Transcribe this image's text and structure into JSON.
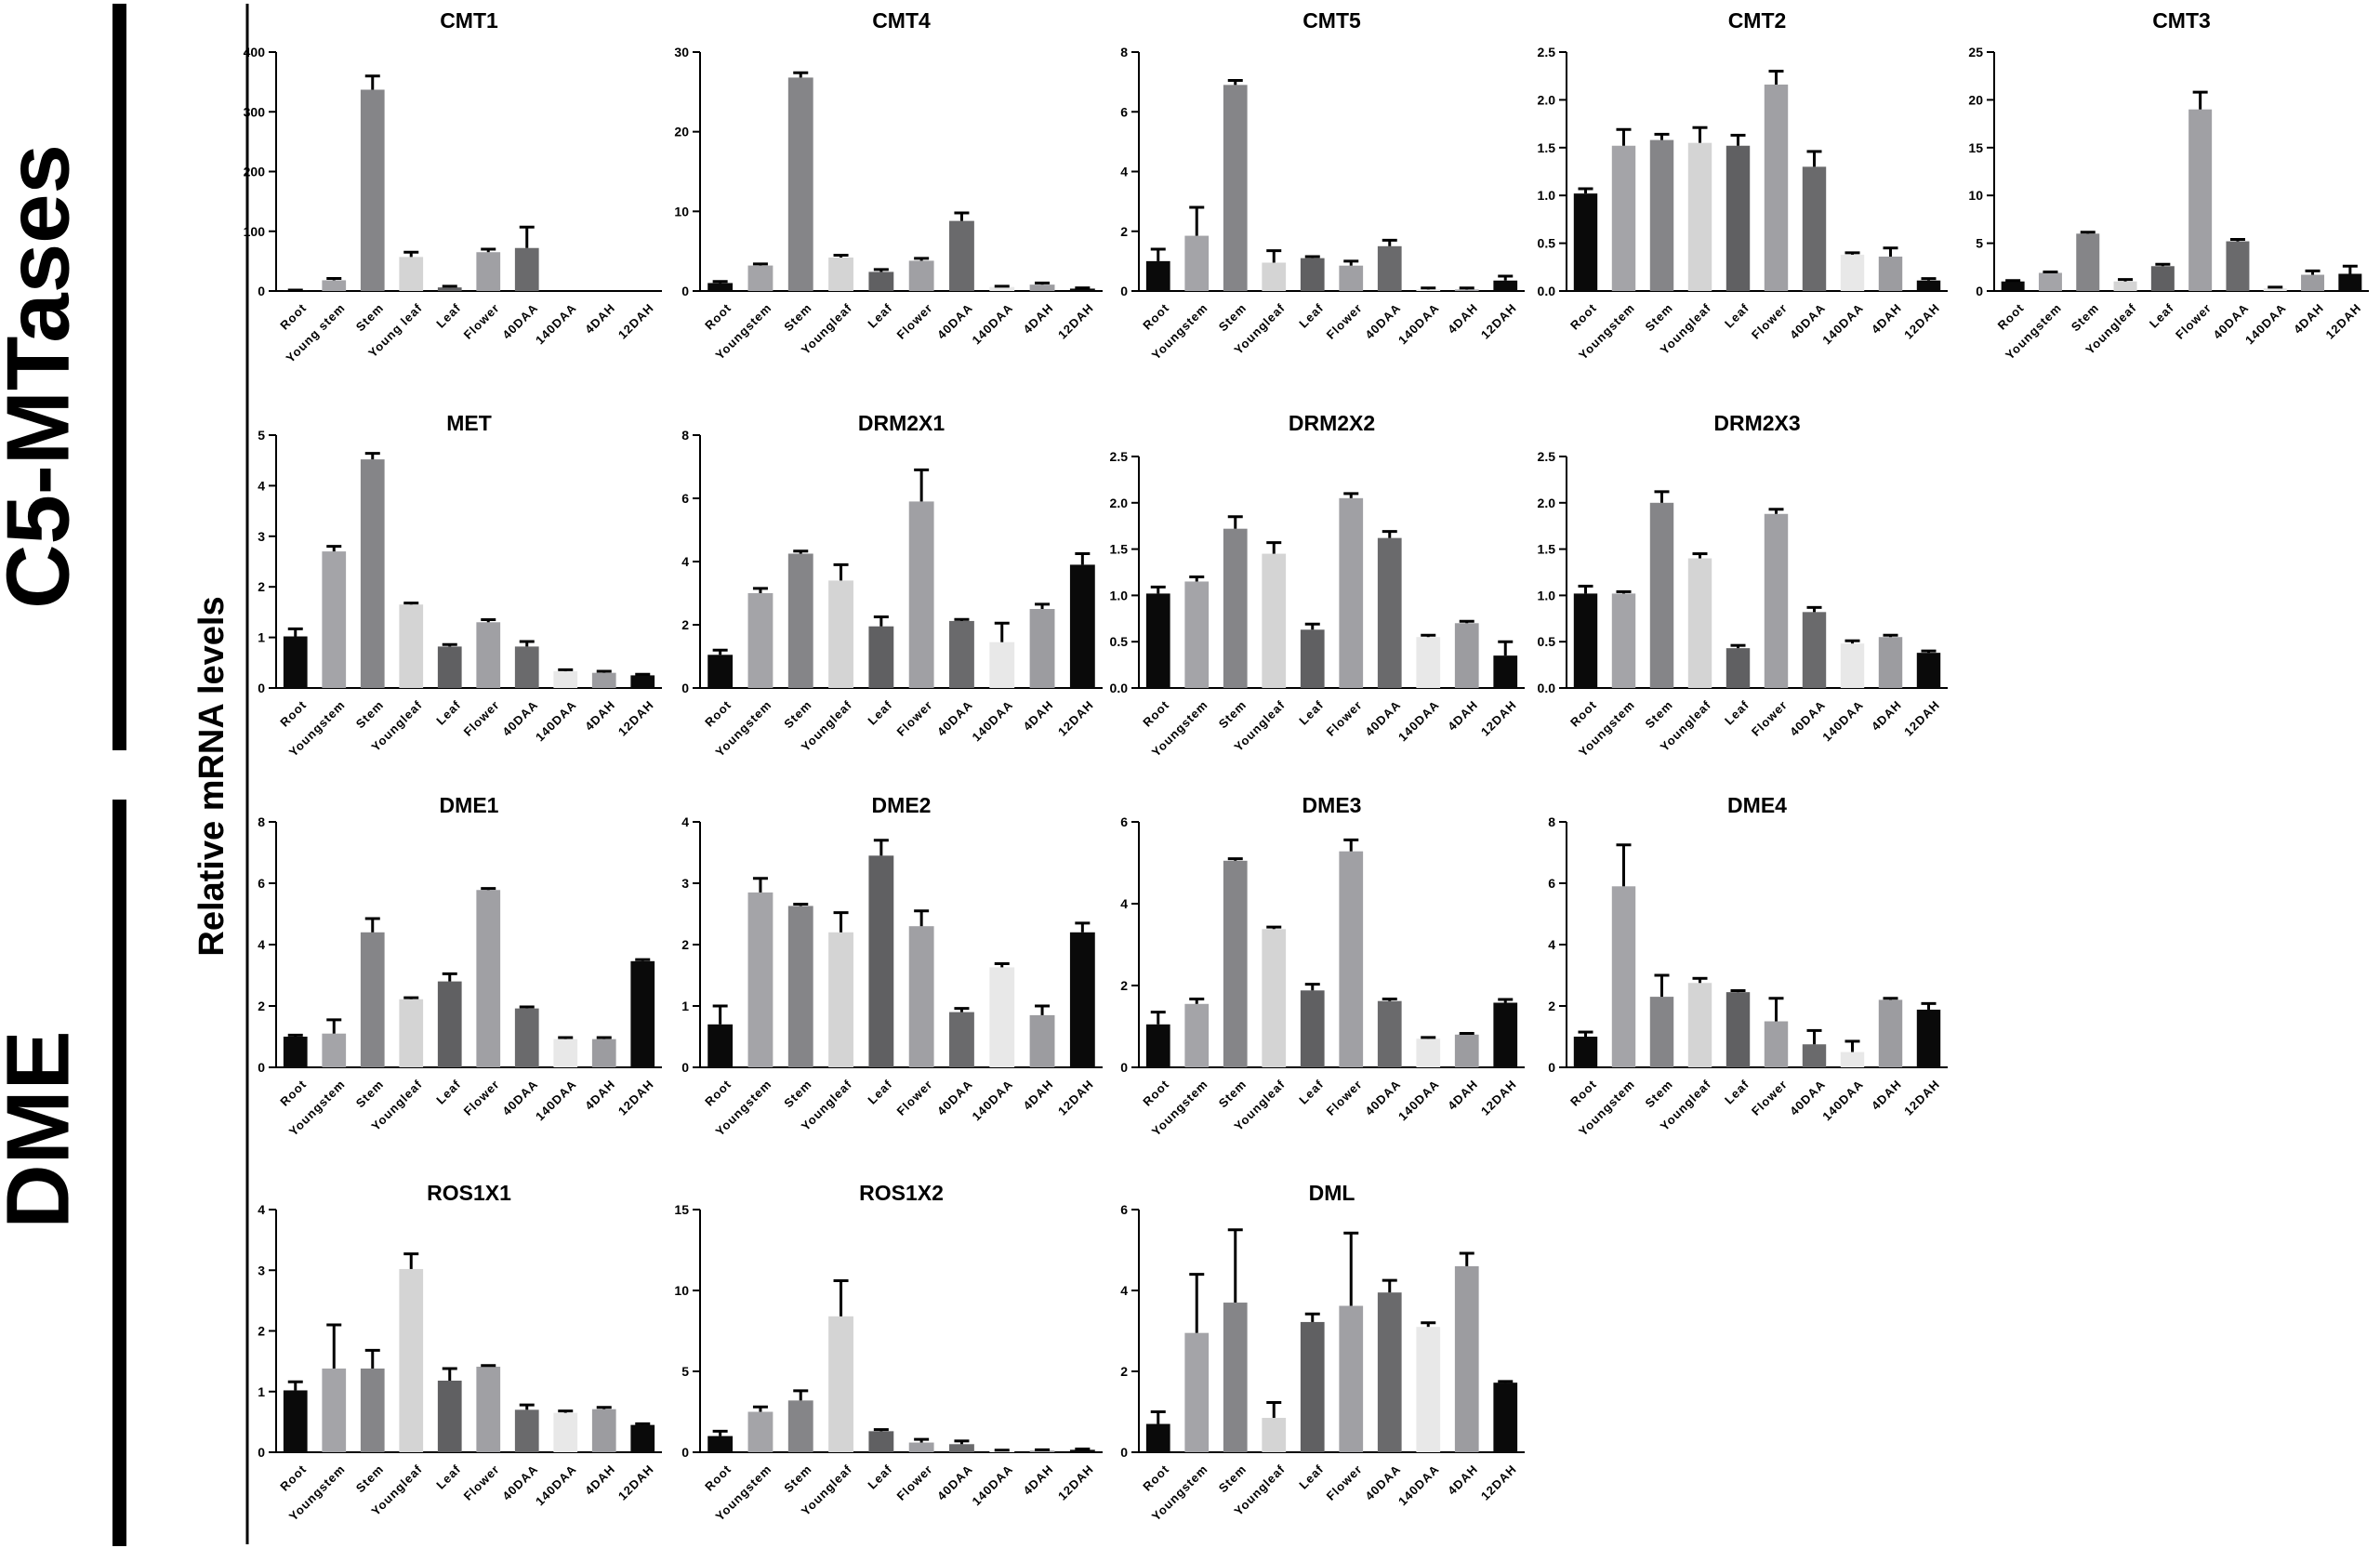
{
  "group_labels": {
    "c5_mtases": "C5-MTases",
    "dme": "DME",
    "y_axis": "Relative mRNA levels"
  },
  "colors": {
    "axis": "#000000",
    "bar_palette": [
      "#0a0a0a",
      "#a4a4a8",
      "#858588",
      "#d4d4d4",
      "#606062",
      "#a0a0a4",
      "#6a6a6c",
      "#e8e8e8",
      "#9c9ca0",
      "#0a0a0a"
    ]
  },
  "chart_data": [
    {
      "type": "bar",
      "title": "CMT1",
      "ylim": [
        0,
        400
      ],
      "yticks": [
        "0",
        "100",
        "200",
        "300",
        "400"
      ],
      "categories": [
        "Root",
        "Young stem",
        "Stem",
        "Young leaf",
        "Leaf",
        "Flower",
        "40DAA",
        "140DAA",
        "4DAH",
        "12DAH"
      ],
      "values": [
        1,
        18,
        337,
        57,
        6,
        65,
        72,
        null,
        null,
        null
      ],
      "errors": [
        0.5,
        3,
        23,
        8,
        2,
        5,
        35,
        null,
        null,
        null
      ]
    },
    {
      "type": "bar",
      "title": "CMT4",
      "ylim": [
        0,
        30
      ],
      "yticks": [
        "0",
        "10",
        "20",
        "30"
      ],
      "categories": [
        "Root",
        "Youngstem",
        "Stem",
        "Youngleaf",
        "Leaf",
        "Flower",
        "40DAA",
        "140DAA",
        "4DAH",
        "12DAH"
      ],
      "values": [
        1,
        3.2,
        26.8,
        4.2,
        2.4,
        3.8,
        8.8,
        0.5,
        0.8,
        0.3
      ],
      "errors": [
        0.2,
        0.2,
        0.6,
        0.3,
        0.3,
        0.3,
        1.0,
        0.1,
        0.2,
        0.1
      ]
    },
    {
      "type": "bar",
      "title": "CMT5",
      "ylim": [
        0,
        8
      ],
      "yticks": [
        "0",
        "2",
        "4",
        "6",
        "8"
      ],
      "categories": [
        "Root",
        "Youngstem",
        "Stem",
        "Youngleaf",
        "Leaf",
        "Flower",
        "40DAA",
        "140DAA",
        "4DAH",
        "12DAH"
      ],
      "values": [
        1.0,
        1.85,
        6.9,
        0.95,
        1.1,
        0.85,
        1.5,
        0.05,
        0.05,
        0.35
      ],
      "errors": [
        0.4,
        0.95,
        0.15,
        0.4,
        0.05,
        0.15,
        0.2,
        0.05,
        0.05,
        0.15
      ]
    },
    {
      "type": "bar",
      "title": "CMT2",
      "ylim": [
        0,
        2.5
      ],
      "yticks": [
        "0.0",
        "0.5",
        "1.0",
        "1.5",
        "2.0",
        "2.5"
      ],
      "categories": [
        "Root",
        "Youngstem",
        "Stem",
        "Youngleaf",
        "Leaf",
        "Flower",
        "40DAA",
        "140DAA",
        "4DAH",
        "12DAH"
      ],
      "values": [
        1.02,
        1.52,
        1.58,
        1.55,
        1.52,
        2.16,
        1.3,
        0.38,
        0.36,
        0.11
      ],
      "errors": [
        0.05,
        0.17,
        0.06,
        0.16,
        0.11,
        0.14,
        0.16,
        0.02,
        0.09,
        0.02
      ]
    },
    {
      "type": "bar",
      "title": "CMT3",
      "ylim": [
        0,
        25
      ],
      "yticks": [
        "0",
        "5",
        "10",
        "15",
        "20",
        "25"
      ],
      "categories": [
        "Root",
        "Youngstem",
        "Stem",
        "Youngleaf",
        "Leaf",
        "Flower",
        "40DAA",
        "140DAA",
        "4DAH",
        "12DAH"
      ],
      "values": [
        1.0,
        1.9,
        6.0,
        1.0,
        2.6,
        19.0,
        5.2,
        0.3,
        1.7,
        1.8
      ],
      "errors": [
        0.1,
        0.1,
        0.15,
        0.2,
        0.2,
        1.8,
        0.2,
        0.1,
        0.4,
        0.8
      ]
    },
    {
      "type": "bar",
      "title": "MET",
      "ylim": [
        0,
        5
      ],
      "yticks": [
        "0",
        "1",
        "2",
        "3",
        "4",
        "5"
      ],
      "categories": [
        "Root",
        "Youngstem",
        "Stem",
        "Youngleaf",
        "Leaf",
        "Flower",
        "40DAA",
        "140DAA",
        "4DAH",
        "12DAH"
      ],
      "values": [
        1.02,
        2.7,
        4.52,
        1.65,
        0.82,
        1.3,
        0.82,
        0.33,
        0.3,
        0.25
      ],
      "errors": [
        0.15,
        0.1,
        0.12,
        0.03,
        0.04,
        0.05,
        0.1,
        0.03,
        0.03,
        0.02
      ]
    },
    {
      "type": "bar",
      "title": "DRM2X1",
      "ylim": [
        0,
        8
      ],
      "yticks": [
        "0",
        "2",
        "4",
        "6",
        "8"
      ],
      "categories": [
        "Root",
        "Youngstem",
        "Stem",
        "Youngleaf",
        "Leaf",
        "Flower",
        "40DAA",
        "140DAA",
        "4DAH",
        "12DAH"
      ],
      "values": [
        1.05,
        3.0,
        4.25,
        3.4,
        1.95,
        5.9,
        2.12,
        1.45,
        2.5,
        3.9
      ],
      "errors": [
        0.15,
        0.15,
        0.08,
        0.5,
        0.3,
        1.0,
        0.05,
        0.6,
        0.15,
        0.35
      ]
    },
    {
      "type": "bar",
      "title": "DRM2X2",
      "ylim": [
        0,
        2.5
      ],
      "yticks": [
        "0.0",
        "0.5",
        "1.0",
        "1.5",
        "2.0",
        "2.5"
      ],
      "categories": [
        "Root",
        "Youngstem",
        "Stem",
        "Youngleaf",
        "Leaf",
        "Flower",
        "40DAA",
        "140DAA",
        "4DAH",
        "12DAH"
      ],
      "values": [
        1.02,
        1.15,
        1.72,
        1.45,
        0.63,
        2.05,
        1.62,
        0.55,
        0.7,
        0.35
      ],
      "errors": [
        0.07,
        0.05,
        0.13,
        0.12,
        0.06,
        0.05,
        0.07,
        0.02,
        0.02,
        0.15
      ]
    },
    {
      "type": "bar",
      "title": "DRM2X3",
      "ylim": [
        0,
        2.5
      ],
      "yticks": [
        "0.0",
        "0.5",
        "1.0",
        "1.5",
        "2.0",
        "2.5"
      ],
      "categories": [
        "Root",
        "Youngstem",
        "Stem",
        "Youngleaf",
        "Leaf",
        "Flower",
        "40DAA",
        "140DAA",
        "4DAH",
        "12DAH"
      ],
      "values": [
        1.02,
        1.02,
        2.0,
        1.4,
        0.43,
        1.88,
        0.82,
        0.48,
        0.55,
        0.38
      ],
      "errors": [
        0.08,
        0.02,
        0.12,
        0.05,
        0.03,
        0.05,
        0.05,
        0.03,
        0.02,
        0.02
      ]
    },
    {
      "type": "bar",
      "title": "DME1",
      "ylim": [
        0,
        8
      ],
      "yticks": [
        "0",
        "2",
        "4",
        "6",
        "8"
      ],
      "categories": [
        "Root",
        "Youngstem",
        "Stem",
        "Youngleaf",
        "Leaf",
        "Flower",
        "40DAA",
        "140DAA",
        "4DAH",
        "12DAH"
      ],
      "values": [
        1.0,
        1.1,
        4.4,
        2.22,
        2.8,
        5.78,
        1.92,
        0.92,
        0.92,
        3.46
      ],
      "errors": [
        0.05,
        0.45,
        0.45,
        0.05,
        0.25,
        0.05,
        0.05,
        0.05,
        0.05,
        0.05
      ]
    },
    {
      "type": "bar",
      "title": "DME2",
      "ylim": [
        0,
        4
      ],
      "yticks": [
        "0",
        "1",
        "2",
        "3",
        "4"
      ],
      "categories": [
        "Root",
        "Youngstem",
        "Stem",
        "Youngleaf",
        "Leaf",
        "Flower",
        "40DAA",
        "140DAA",
        "4DAH",
        "12DAH"
      ],
      "values": [
        0.7,
        2.85,
        2.63,
        2.2,
        3.45,
        2.3,
        0.9,
        1.63,
        0.85,
        2.2
      ],
      "errors": [
        0.3,
        0.23,
        0.03,
        0.32,
        0.25,
        0.25,
        0.06,
        0.06,
        0.15,
        0.15
      ]
    },
    {
      "type": "bar",
      "title": "DME3",
      "ylim": [
        0,
        6
      ],
      "yticks": [
        "0",
        "2",
        "4",
        "6"
      ],
      "categories": [
        "Root",
        "Youngstem",
        "Stem",
        "Youngleaf",
        "Leaf",
        "Flower",
        "40DAA",
        "140DAA",
        "4DAH",
        "12DAH"
      ],
      "values": [
        1.05,
        1.55,
        5.05,
        3.38,
        1.88,
        5.28,
        1.62,
        0.7,
        0.8,
        1.58
      ],
      "errors": [
        0.3,
        0.12,
        0.05,
        0.05,
        0.15,
        0.28,
        0.05,
        0.03,
        0.03,
        0.08
      ]
    },
    {
      "type": "bar",
      "title": "DME4",
      "ylim": [
        0,
        8
      ],
      "yticks": [
        "0",
        "2",
        "4",
        "6",
        "8"
      ],
      "categories": [
        "Root",
        "Youngstem",
        "Stem",
        "Youngleaf",
        "Leaf",
        "Flower",
        "40DAA",
        "140DAA",
        "4DAH",
        "12DAH"
      ],
      "values": [
        1.0,
        5.9,
        2.3,
        2.75,
        2.45,
        1.5,
        0.75,
        0.5,
        2.2,
        1.88
      ],
      "errors": [
        0.15,
        1.35,
        0.7,
        0.15,
        0.05,
        0.75,
        0.45,
        0.35,
        0.05,
        0.2
      ]
    },
    {
      "type": "bar",
      "title": "ROS1X1",
      "ylim": [
        0,
        4
      ],
      "yticks": [
        "0",
        "1",
        "2",
        "3",
        "4"
      ],
      "categories": [
        "Root",
        "Youngstem",
        "Stem",
        "Youngleaf",
        "Leaf",
        "Flower",
        "40DAA",
        "140DAA",
        "4DAH",
        "12DAH"
      ],
      "values": [
        1.02,
        1.38,
        1.38,
        3.02,
        1.18,
        1.41,
        0.7,
        0.65,
        0.71,
        0.45
      ],
      "errors": [
        0.14,
        0.72,
        0.3,
        0.25,
        0.2,
        0.02,
        0.08,
        0.03,
        0.03,
        0.02
      ]
    },
    {
      "type": "bar",
      "title": "ROS1X2",
      "ylim": [
        0,
        15
      ],
      "yticks": [
        "0",
        "5",
        "10",
        "15"
      ],
      "categories": [
        "Root",
        "Youngstem",
        "Stem",
        "Youngleaf",
        "Leaf",
        "Flower",
        "40DAA",
        "140DAA",
        "4DAH",
        "12DAH"
      ],
      "values": [
        1.0,
        2.5,
        3.2,
        8.4,
        1.3,
        0.6,
        0.5,
        0.08,
        0.1,
        0.15
      ],
      "errors": [
        0.3,
        0.3,
        0.6,
        2.2,
        0.1,
        0.2,
        0.2,
        0.05,
        0.05,
        0.05
      ]
    },
    {
      "type": "bar",
      "title": "DML",
      "ylim": [
        0,
        6
      ],
      "yticks": [
        "0",
        "2",
        "4",
        "6"
      ],
      "categories": [
        "Root",
        "Youngstem",
        "Stem",
        "Youngleaf",
        "Leaf",
        "Flower",
        "40DAA",
        "140DAA",
        "4DAH",
        "12DAH"
      ],
      "values": [
        0.7,
        2.95,
        3.7,
        0.85,
        3.22,
        3.62,
        3.95,
        3.1,
        4.6,
        1.72
      ],
      "errors": [
        0.3,
        1.45,
        1.8,
        0.38,
        0.2,
        1.8,
        0.3,
        0.1,
        0.32,
        0.03
      ]
    }
  ]
}
